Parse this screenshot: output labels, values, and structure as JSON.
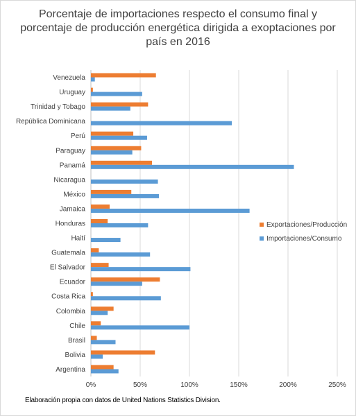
{
  "chart_data": {
    "type": "bar",
    "orientation": "horizontal",
    "title": "Porcentaje de importaciones respecto el consumo final y porcentaje de producción energética dirigida a exoptaciones por país en 2016",
    "categories": [
      "Venezuela",
      "Uruguay",
      "Trinidad y Tobago",
      "República Dominicana",
      "Perú",
      "Paraguay",
      "Panamá",
      "Nicaragua",
      "México",
      "Jamaica",
      "Honduras",
      "Haití",
      "Guatemala",
      "El Salvador",
      "Ecuador",
      "Costa Rica",
      "Colombia",
      "Chile",
      "Brasil",
      "Bolivia",
      "Argentina"
    ],
    "series": [
      {
        "name": "Exportaciones/Producción",
        "color": "#ED7D31",
        "values": [
          66,
          2,
          58,
          0,
          43,
          51,
          62,
          0,
          41,
          19,
          17,
          0,
          8,
          18,
          70,
          2,
          23,
          10,
          6,
          65,
          23
        ]
      },
      {
        "name": "Importaciones/Consumo",
        "color": "#5B9BD5",
        "values": [
          4,
          52,
          40,
          143,
          57,
          42,
          206,
          68,
          69,
          161,
          58,
          30,
          60,
          101,
          52,
          71,
          17,
          100,
          25,
          12,
          28
        ]
      }
    ],
    "xlim": [
      0,
      250
    ],
    "xticks": [
      "0%",
      "50%",
      "100%",
      "150%",
      "200%",
      "250%"
    ],
    "xlabel": "",
    "ylabel": "",
    "grid": true,
    "legend_position": "right",
    "note": "Elaboración propia con datos de United Nations Statistics Division."
  }
}
